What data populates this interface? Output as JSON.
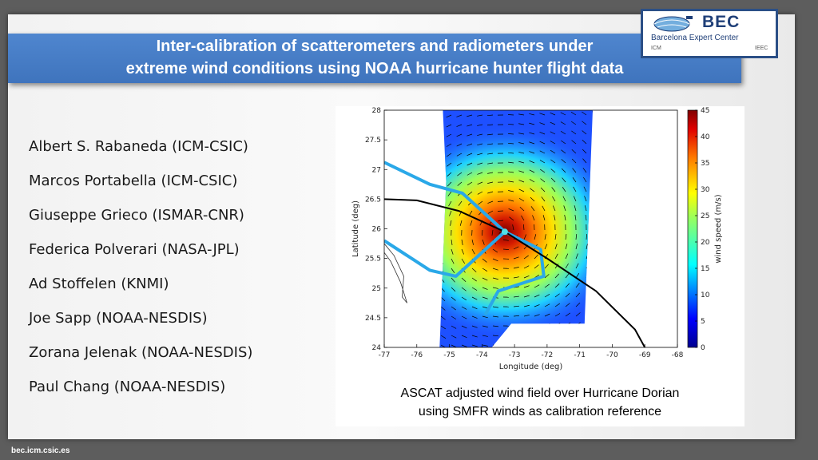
{
  "slide": {
    "title_line1": "Inter-calibration of scatterometers and radiometers under",
    "title_line2": "extreme wind conditions using NOAA hurricane hunter flight data",
    "footer": "bec.icm.csic.es"
  },
  "logo": {
    "name": "BEC",
    "subtitle": "Barcelona Expert Center",
    "partner_left": "ICM",
    "partner_right": "IEEC"
  },
  "authors": [
    "Albert S. Rabaneda (ICM-CSIC)",
    "Marcos Portabella (ICM-CSIC)",
    "Giuseppe Grieco (ISMAR-CNR)",
    "Federica Polverari (NASA-JPL)",
    "Ad Stoffelen (KNMI)",
    "Joe Sapp (NOAA-NESDIS)",
    "Zorana Jelenak (NOAA-NESDIS)",
    "Paul Chang (NOAA-NESDIS)"
  ],
  "figure": {
    "caption_line1": "ASCAT adjusted wind field over Hurricane Dorian",
    "caption_line2": "using SMFR winds as calibration reference"
  },
  "chart_data": {
    "type": "heatmap",
    "xlabel": "Longitude (deg)",
    "ylabel": "Latitude (deg)",
    "colorbar_label": "wind speed (m/s)",
    "xlim": [
      -77,
      -68
    ],
    "ylim": [
      24,
      28
    ],
    "x_ticks": [
      "-77",
      "-76",
      "-75",
      "-74",
      "-73",
      "-72",
      "-71",
      "-70",
      "-69",
      "-68"
    ],
    "y_ticks": [
      "24",
      "24.5",
      "25",
      "25.5",
      "26",
      "26.5",
      "27",
      "27.5",
      "28"
    ],
    "colorbar_range": [
      0,
      45
    ],
    "colorbar_ticks": [
      "0",
      "5",
      "10",
      "15",
      "20",
      "25",
      "30",
      "35",
      "40",
      "45"
    ],
    "colormap": "jet",
    "hurricane_center": {
      "lon": -73.3,
      "lat": 25.95
    },
    "flight_track": [
      {
        "lon": -77.0,
        "lat": 27.12
      },
      {
        "lon": -75.6,
        "lat": 26.75
      },
      {
        "lon": -74.6,
        "lat": 26.6
      },
      {
        "lon": -73.3,
        "lat": 25.95
      },
      {
        "lon": -72.2,
        "lat": 25.65
      },
      {
        "lon": -72.1,
        "lat": 25.2
      },
      {
        "lon": -73.5,
        "lat": 24.95
      },
      {
        "lon": -73.9,
        "lat": 24.55
      }
    ],
    "flight_track_2": [
      {
        "lon": -77.0,
        "lat": 25.8
      },
      {
        "lon": -75.6,
        "lat": 25.3
      },
      {
        "lon": -74.8,
        "lat": 25.2
      },
      {
        "lon": -73.3,
        "lat": 25.95
      }
    ],
    "storm_track": [
      {
        "lon": -77.0,
        "lat": 26.5
      },
      {
        "lon": -76.0,
        "lat": 26.48
      },
      {
        "lon": -74.7,
        "lat": 26.3
      },
      {
        "lon": -73.3,
        "lat": 25.95
      },
      {
        "lon": -72.0,
        "lat": 25.5
      },
      {
        "lon": -70.5,
        "lat": 24.95
      },
      {
        "lon": -69.3,
        "lat": 24.3
      },
      {
        "lon": -69.0,
        "lat": 24.0
      }
    ],
    "colors": {
      "track_line": "#000000",
      "flight_line": "#2aa8e8",
      "background_wind": "#1e3cff"
    }
  }
}
